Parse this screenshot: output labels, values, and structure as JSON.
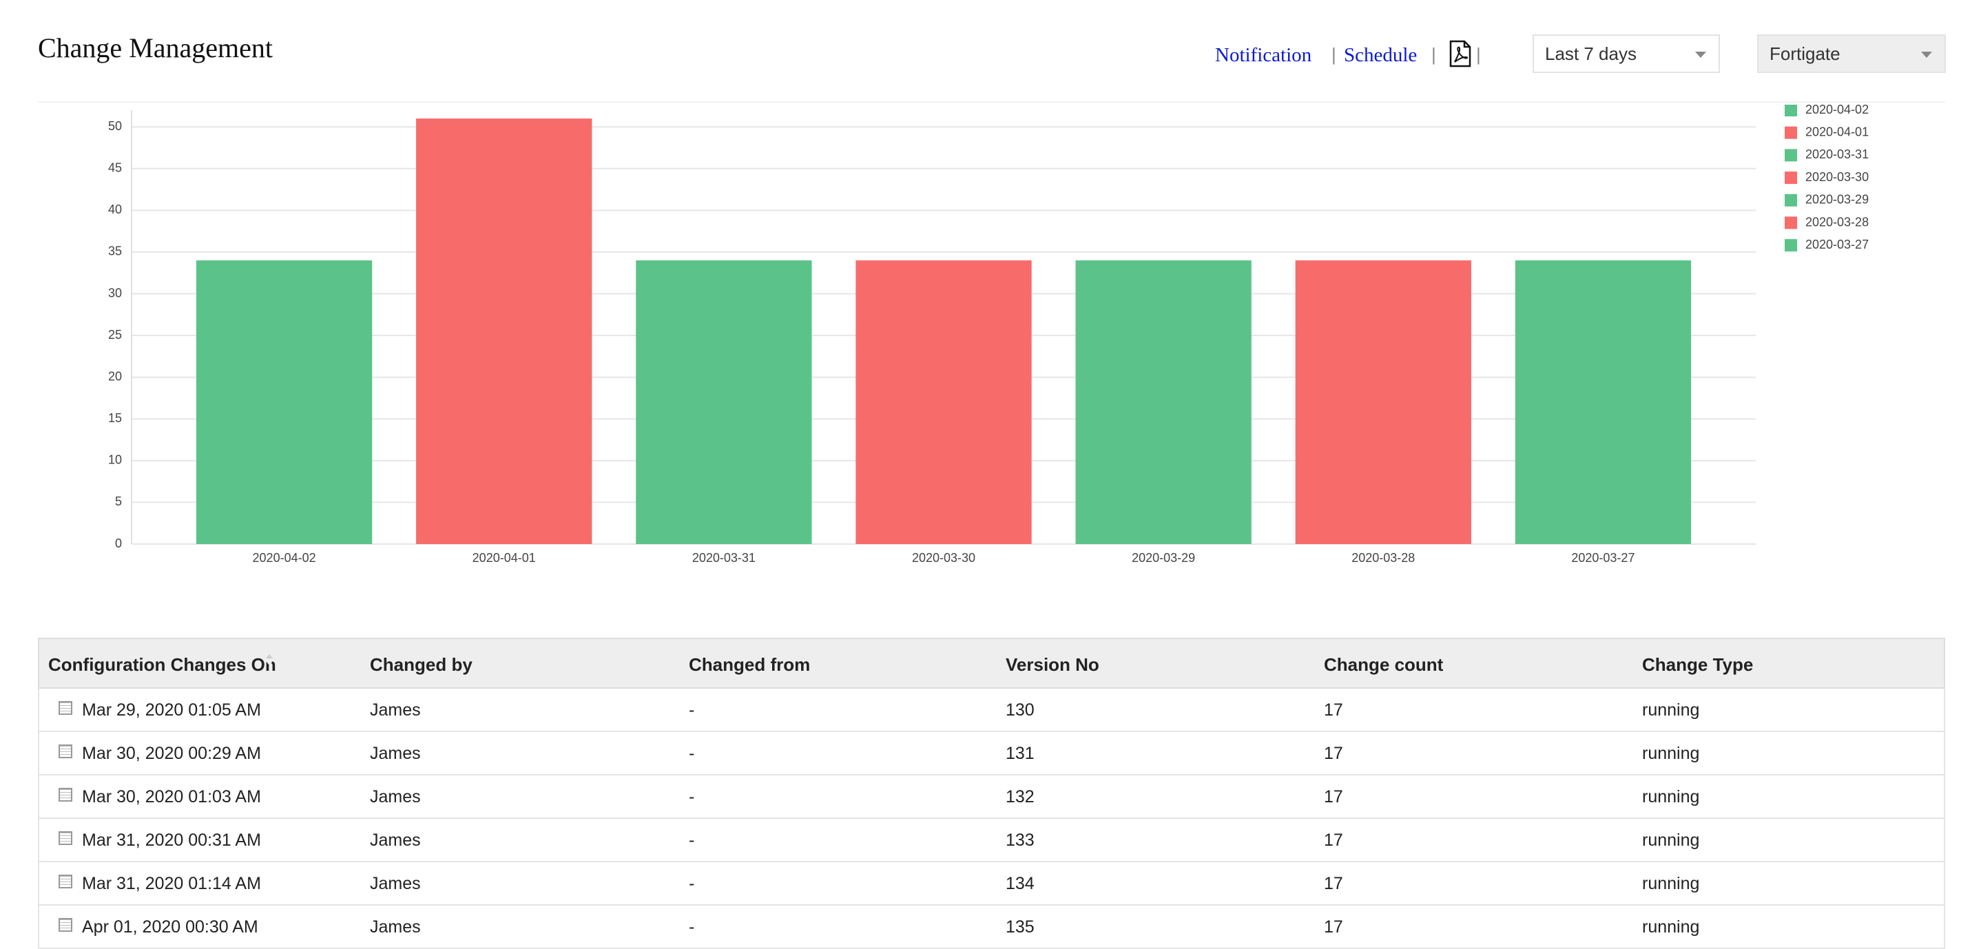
{
  "header": {
    "title": "Change Management",
    "links": [
      "Notification",
      "Schedule"
    ],
    "dropdowns": [
      "Last 7 days",
      "Fortigate"
    ]
  },
  "chart_data": {
    "type": "bar",
    "categories": [
      "2020-04-02",
      "2020-04-01",
      "2020-03-31",
      "2020-03-30",
      "2020-03-29",
      "2020-03-28",
      "2020-03-27"
    ],
    "values": [
      34,
      51,
      34,
      34,
      34,
      34,
      34
    ],
    "colors": [
      "#5bc38a",
      "#f86b6b",
      "#5bc38a",
      "#f86b6b",
      "#5bc38a",
      "#f86b6b",
      "#5bc38a"
    ],
    "ylim": [
      0,
      52
    ],
    "yticks": [
      0,
      5,
      10,
      15,
      20,
      25,
      30,
      35,
      40,
      45,
      50
    ],
    "grid": true,
    "legend": "right"
  },
  "table": {
    "columns": [
      "Configuration Changes On",
      "Changed by",
      "Changed from",
      "Version No",
      "Change count",
      "Change Type"
    ],
    "rows": [
      [
        "Mar 29, 2020 01:05 AM",
        "James",
        "-",
        130,
        17,
        "running"
      ],
      [
        "Mar 30, 2020 00:29 AM",
        "James",
        "-",
        131,
        17,
        "running"
      ],
      [
        "Mar 30, 2020 01:03 AM",
        "James",
        "-",
        132,
        17,
        "running"
      ],
      [
        "Mar 31, 2020 00:31 AM",
        "James",
        "-",
        133,
        17,
        "running"
      ],
      [
        "Mar 31, 2020 01:14 AM",
        "James",
        "-",
        134,
        17,
        "running"
      ],
      [
        "Apr 01, 2020 00:30 AM",
        "James",
        "-",
        135,
        17,
        "running"
      ]
    ]
  }
}
